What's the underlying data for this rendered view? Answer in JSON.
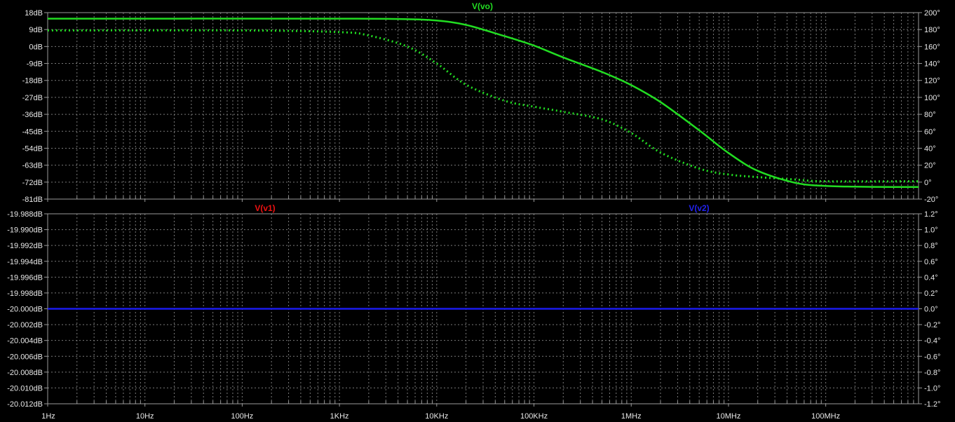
{
  "theme": {
    "background": "#000000",
    "frame": "#9a9a9a",
    "grid": "#7a7a7a",
    "tick_text": "#e8e8e8"
  },
  "chart_data": [
    {
      "type": "line",
      "panel": "top",
      "title": "V(vo)",
      "title_color": "#22dd22",
      "x_scale": "log",
      "x_range_hz": [
        1,
        900000000
      ],
      "x_tick_labels": [
        {
          "hz": 1,
          "label": "1Hz"
        },
        {
          "hz": 10,
          "label": "10Hz"
        },
        {
          "hz": 100,
          "label": "100Hz"
        },
        {
          "hz": 1000,
          "label": "1KHz"
        },
        {
          "hz": 10000,
          "label": "10KHz"
        },
        {
          "hz": 100000,
          "label": "100KHz"
        },
        {
          "hz": 1000000,
          "label": "1MHz"
        },
        {
          "hz": 10000000,
          "label": "10MHz"
        },
        {
          "hz": 100000000,
          "label": "100MHz"
        }
      ],
      "y_left": {
        "unit": "dB",
        "range": [
          -81,
          18
        ],
        "ticks": [
          "18dB",
          "9dB",
          "0dB",
          "-9dB",
          "-18dB",
          "-27dB",
          "-36dB",
          "-45dB",
          "-54dB",
          "-63dB",
          "-72dB",
          "-81dB"
        ]
      },
      "y_right": {
        "unit": "°",
        "range": [
          -20,
          200
        ],
        "ticks": [
          "200°",
          "180°",
          "160°",
          "140°",
          "120°",
          "100°",
          "80°",
          "60°",
          "40°",
          "20°",
          "0°",
          "-20°"
        ]
      },
      "grid": true,
      "series": [
        {
          "name": "V(vo)",
          "quantity": "magnitude",
          "axis": "left",
          "color": "#22dd22",
          "style": "solid",
          "x": [
            1,
            1000,
            5000,
            10000,
            20000,
            50000,
            100000,
            200000,
            500000,
            1000000,
            2000000,
            5000000,
            10000000,
            20000000,
            50000000,
            100000000,
            200000000,
            500000000,
            900000000
          ],
          "y": [
            14.8,
            14.8,
            14.5,
            13.8,
            11.5,
            5.5,
            0.5,
            -5.8,
            -13.5,
            -20.5,
            -29.5,
            -44.5,
            -56.5,
            -66,
            -72.5,
            -74,
            -74.4,
            -74.6,
            -74.6
          ]
        },
        {
          "name": "V(vo)",
          "quantity": "phase",
          "axis": "right",
          "color": "#22dd22",
          "style": "dotted",
          "x": [
            1,
            100,
            1000,
            2000,
            5000,
            10000,
            20000,
            50000,
            100000,
            200000,
            500000,
            1000000,
            2000000,
            5000000,
            10000000,
            20000000,
            50000000,
            100000000,
            900000000
          ],
          "y": [
            179,
            179,
            177,
            173,
            160,
            140,
            115,
            96,
            89,
            83,
            74,
            58,
            35,
            16,
            9,
            6,
            3,
            1,
            1
          ]
        }
      ]
    },
    {
      "type": "line",
      "panel": "bottom",
      "x_scale": "log",
      "x_range_hz": [
        1,
        900000000
      ],
      "y_left": {
        "unit": "dB",
        "range": [
          -20.012,
          -19.988
        ],
        "ticks": [
          "-19.988dB",
          "-19.990dB",
          "-19.992dB",
          "-19.994dB",
          "-19.996dB",
          "-19.998dB",
          "-20.000dB",
          "-20.002dB",
          "-20.004dB",
          "-20.006dB",
          "-20.008dB",
          "-20.010dB",
          "-20.012dB"
        ]
      },
      "y_right": {
        "unit": "°",
        "range": [
          -1.2,
          1.2
        ],
        "ticks": [
          "1.2°",
          "1.0°",
          "0.8°",
          "0.6°",
          "0.4°",
          "0.2°",
          "0.0°",
          "-0.2°",
          "-0.4°",
          "-0.6°",
          "-0.8°",
          "-1.0°",
          "-1.2°"
        ]
      },
      "grid": true,
      "legend_labels": [
        {
          "text": "V(v1)",
          "color": "#ee1111"
        },
        {
          "text": "V(v2)",
          "color": "#2222ee"
        }
      ],
      "series": [
        {
          "name": "V(v2)",
          "quantity": "magnitude",
          "axis": "left",
          "color": "#1a1aee",
          "style": "solid",
          "x": [
            1,
            900000000
          ],
          "y": [
            -20.0,
            -20.0
          ]
        }
      ]
    }
  ]
}
